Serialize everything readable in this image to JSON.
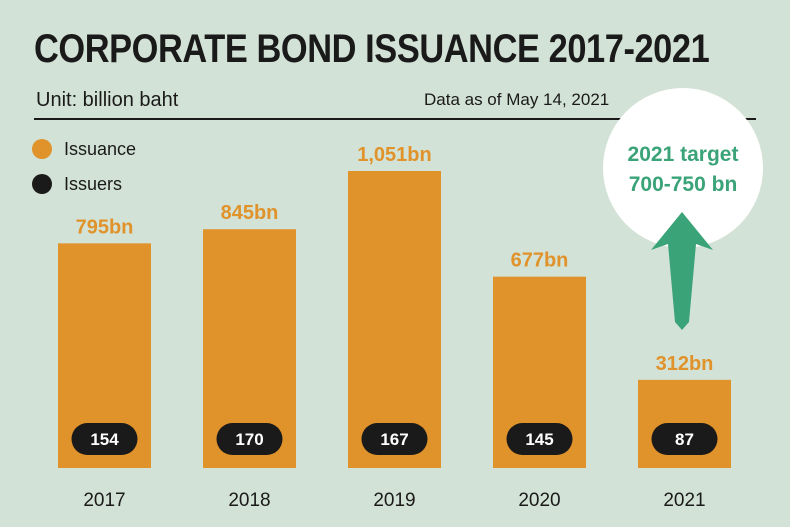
{
  "title": "CORPORATE BOND ISSUANCE 2017-2021",
  "unit_label": "Unit: billion baht",
  "as_of": "Data as of May 14, 2021",
  "legend": [
    {
      "label": "Issuance",
      "color": "#e0922b"
    },
    {
      "label": "Issuers",
      "color": "#1a1a1a"
    }
  ],
  "target": {
    "line1": "2021 target",
    "line2": "700-750 bn"
  },
  "colors": {
    "bar": "#e0922b",
    "pill": "#1a1a1a",
    "arrow": "#3aa378",
    "background": "#d3e2d6"
  },
  "chart_data": {
    "type": "bar",
    "categories": [
      "2017",
      "2018",
      "2019",
      "2020",
      "2021"
    ],
    "series": [
      {
        "name": "Issuance",
        "values": [
          795,
          845,
          1051,
          677,
          312
        ]
      },
      {
        "name": "Issuers",
        "values": [
          154,
          170,
          167,
          145,
          87
        ]
      }
    ],
    "value_labels": [
      "795bn",
      "845bn",
      "1,051bn",
      "677bn",
      "312bn"
    ],
    "ylim": [
      0,
      1051
    ],
    "grid": false,
    "legend_position": "top-left"
  }
}
